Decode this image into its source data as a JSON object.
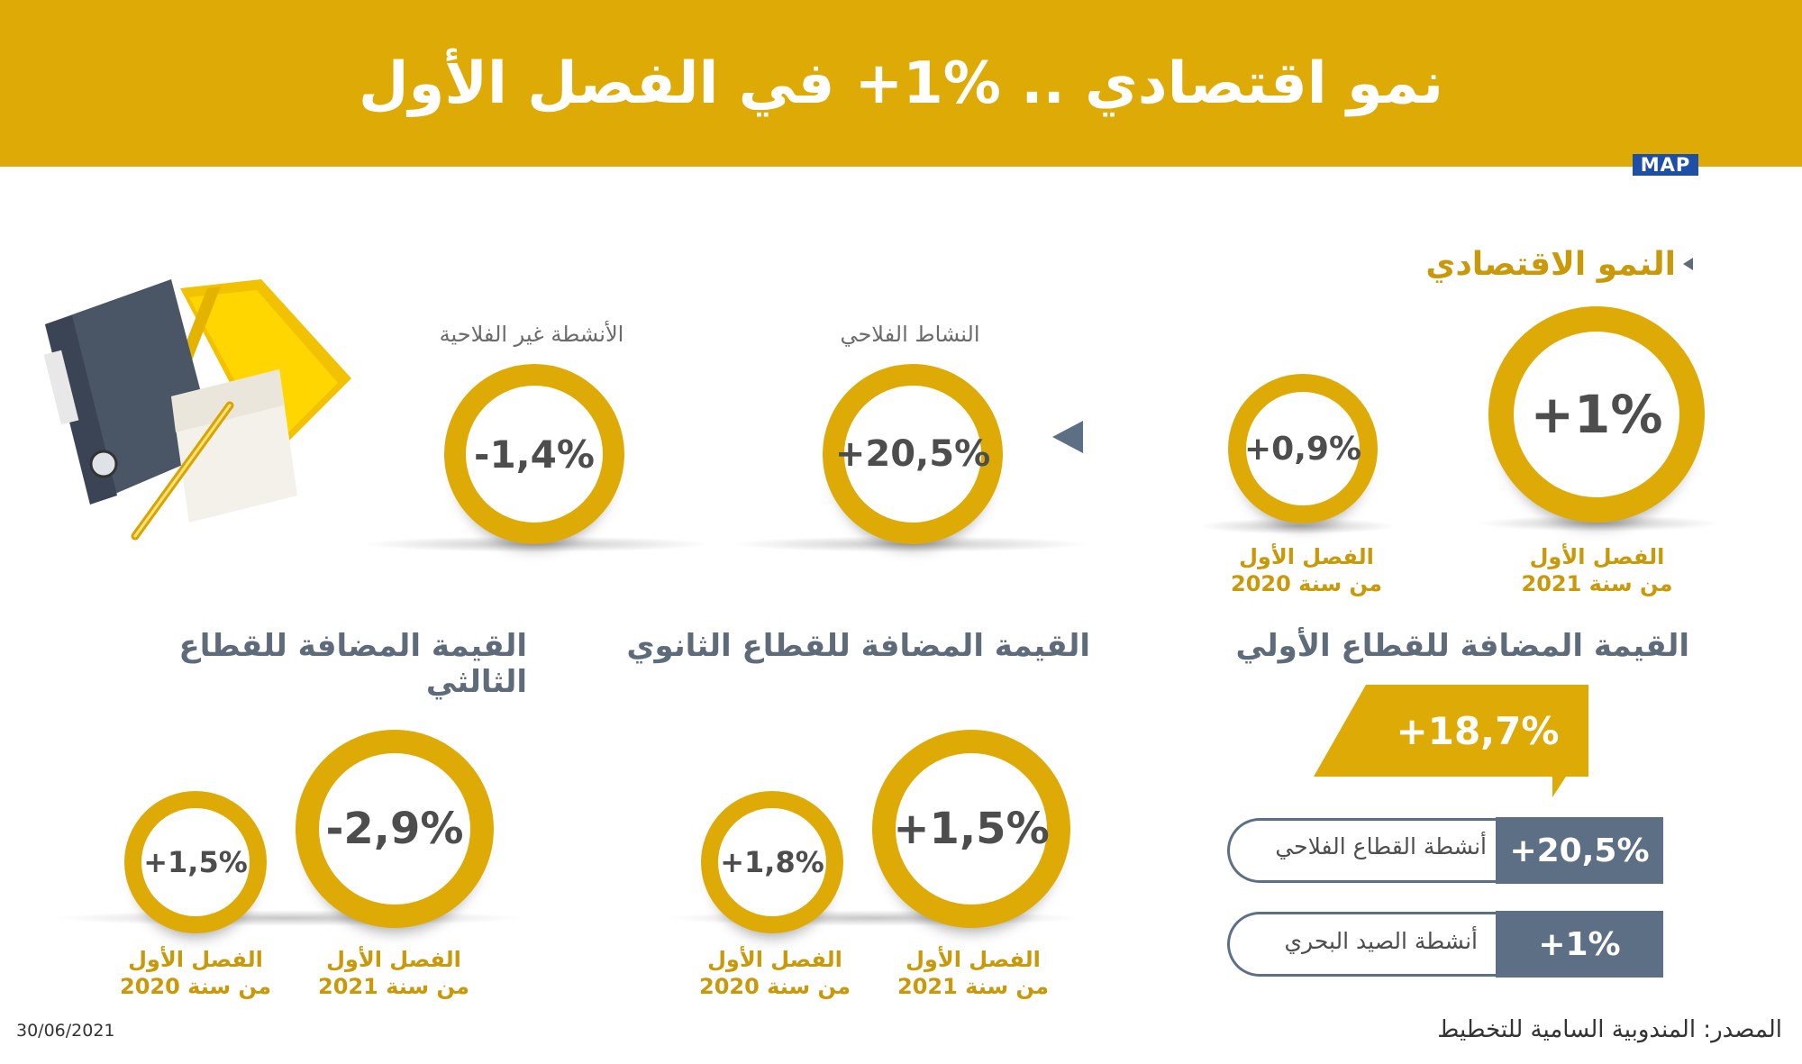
{
  "header": {
    "title": "نمو اقتصادي .. %1+ في الفصل الأول",
    "logo": "MAP"
  },
  "growth": {
    "heading": "النمو الاقتصادي",
    "main": {
      "value": "+1%",
      "caption_1": "الفصل الأول",
      "caption_2": "من سنة 2021"
    },
    "previous": {
      "value": "+0,9%",
      "caption_1": "الفصل الأول",
      "caption_2": "من سنة 2020"
    }
  },
  "agri": {
    "label": "النشاط الفلاحي",
    "value": "+20,5%"
  },
  "nonagri": {
    "label": "الأنشطة غير الفلاحية",
    "value": "-1,4%"
  },
  "primary": {
    "heading": "القيمة المضافة للقطاع الأولي",
    "total": "+18,7%",
    "items": [
      {
        "label": "أنشطة القطاع الفلاحي",
        "value": "+20,5%"
      },
      {
        "label": "أنشطة الصيد البحري",
        "value": "+1%"
      }
    ]
  },
  "secondary": {
    "heading": "القيمة المضافة للقطاع الثانوي",
    "current": {
      "value": "+1,5%",
      "caption_1": "الفصل الأول",
      "caption_2": "من سنة 2021"
    },
    "previous": {
      "value": "+1,8%",
      "caption_1": "الفصل الأول",
      "caption_2": "من سنة 2020"
    }
  },
  "tertiary": {
    "heading": "القيمة المضافة للقطاع الثالثي",
    "current": {
      "value": "-2,9%",
      "caption_1": "الفصل الأول",
      "caption_2": "من سنة 2021"
    },
    "previous": {
      "value": "+1,5%",
      "caption_1": "الفصل الأول",
      "caption_2": "من سنة 2020"
    }
  },
  "footer": {
    "source": "المصدر: المندوبية السامية للتخطيط",
    "date": "30/06/2021"
  },
  "colors": {
    "gold": "#deaa06",
    "slate": "#5c6f85",
    "text": "#4d4d4d"
  },
  "icons": {
    "illustration": "binders-and-pencil-icon"
  }
}
